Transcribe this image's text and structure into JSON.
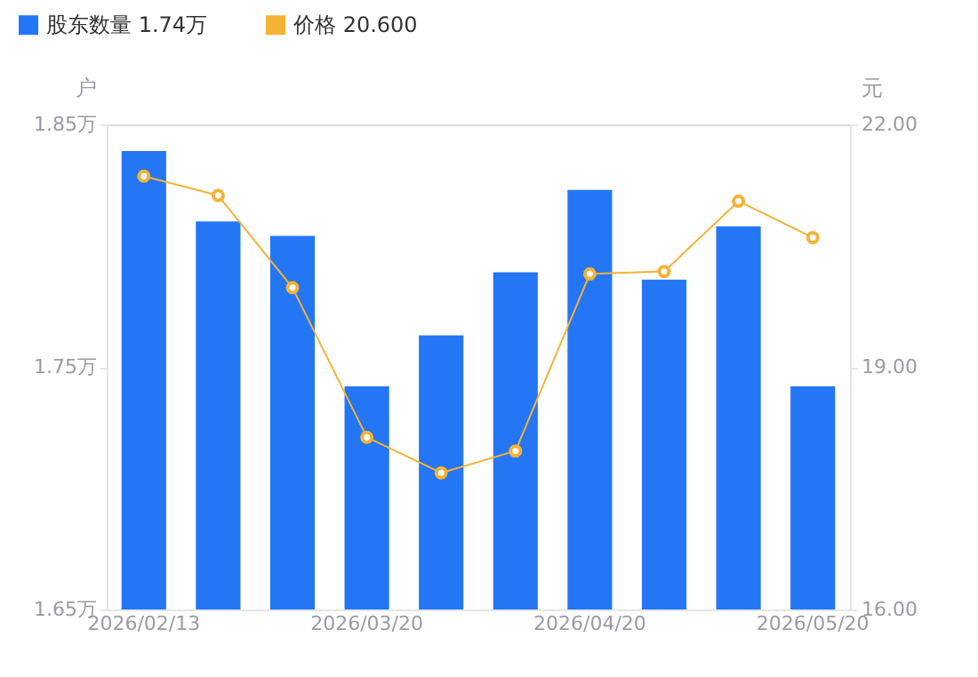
{
  "chart_data": {
    "type": "bar",
    "categories": [
      "2026/02/13",
      null,
      null,
      "2026/03/20",
      null,
      null,
      "2026/04/20",
      null,
      null,
      "2026/05/20"
    ],
    "series": [
      {
        "name": "股东数量 1.74万",
        "type": "bar",
        "color": "#2476f5",
        "values": [
          1.839,
          1.81,
          1.804,
          1.742,
          1.763,
          1.789,
          1.823,
          1.786,
          1.808,
          1.742
        ]
      },
      {
        "name": "价格 20.600",
        "type": "line",
        "axis": "y2",
        "color": "#f5b335",
        "marker": "circle",
        "values": [
          21.36,
          21.12,
          19.98,
          18.13,
          17.69,
          17.96,
          20.15,
          20.18,
          21.05,
          20.6
        ]
      }
    ],
    "ylabel": "户",
    "y2label": "元",
    "ylim": [
      1.65,
      1.85
    ],
    "yticks": [
      {
        "value": 1.65,
        "label": "1.65万"
      },
      {
        "value": 1.75,
        "label": "1.75万"
      },
      {
        "value": 1.85,
        "label": "1.85万"
      }
    ],
    "y2lim": [
      16,
      22
    ],
    "y2ticks": [
      {
        "value": 16,
        "label": "16.00"
      },
      {
        "value": 19,
        "label": "19.00"
      },
      {
        "value": 22,
        "label": "22.00"
      }
    ],
    "grid": false,
    "legend": "top left"
  }
}
